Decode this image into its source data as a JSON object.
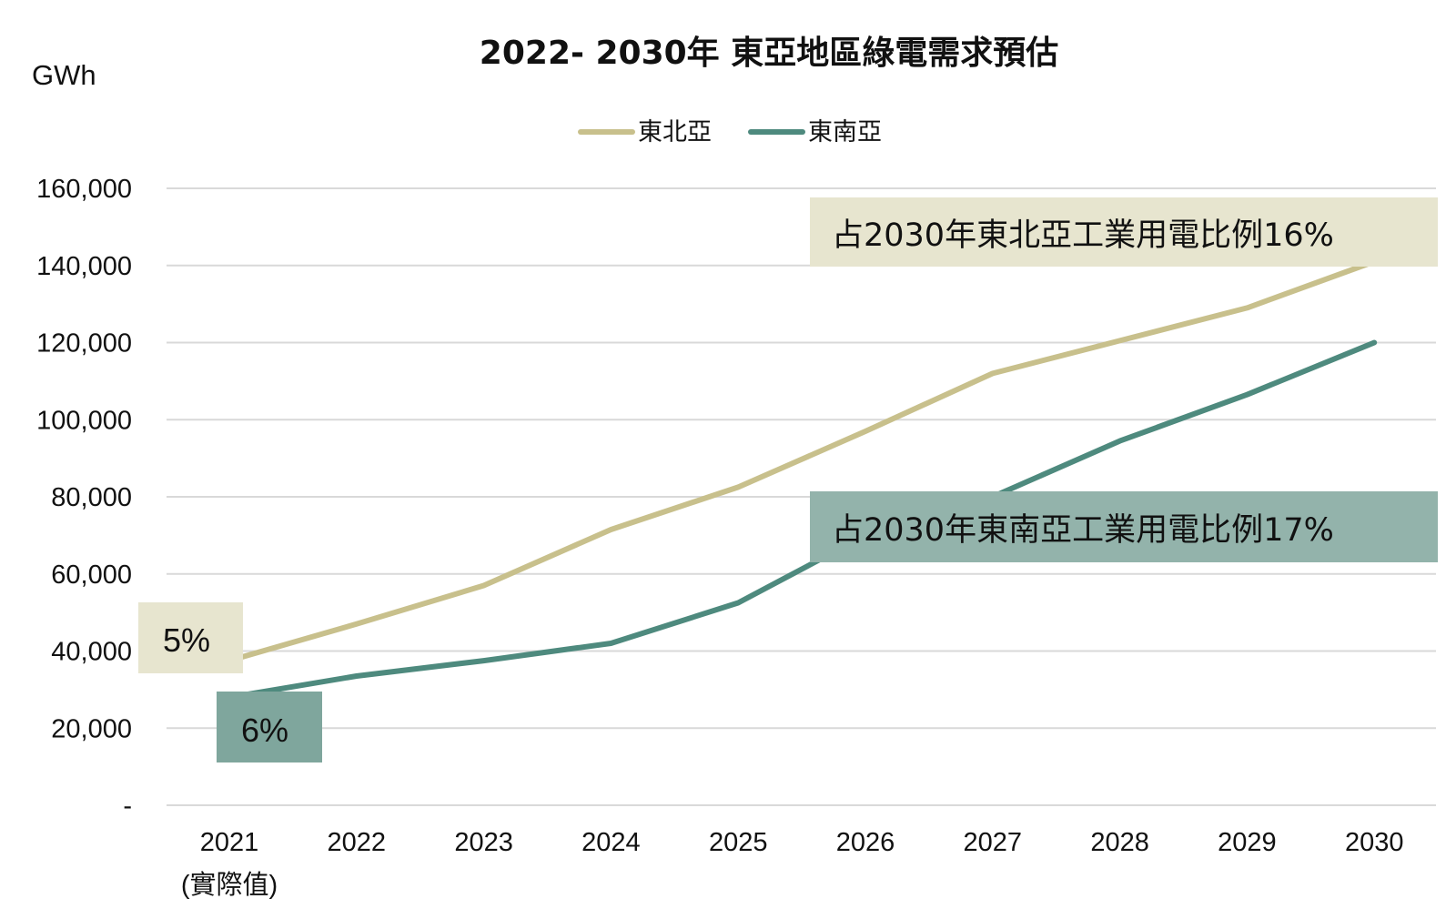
{
  "chart_data": {
    "type": "line",
    "title": "2022- 2030年 東亞地區綠電需求預估",
    "ylabel": "GWh",
    "xlabel": "",
    "categories": [
      "2021",
      "2022",
      "2023",
      "2024",
      "2025",
      "2026",
      "2027",
      "2028",
      "2029",
      "2030"
    ],
    "category_sublabels": [
      "(實際值)",
      "",
      "",
      "",
      "",
      "",
      "",
      "",
      "",
      ""
    ],
    "y_ticks": [
      "-",
      "20,000",
      "40,000",
      "60,000",
      "80,000",
      "100,000",
      "120,000",
      "140,000",
      "160,000"
    ],
    "ylim": [
      0,
      160000
    ],
    "grid": "horizontal",
    "legend_position": "top-center",
    "series": [
      {
        "name": "東北亞",
        "color": "#c8c08c",
        "values": [
          37500,
          47000,
          57000,
          71500,
          82500,
          97000,
          112000,
          120500,
          129000,
          141000
        ]
      },
      {
        "name": "東南亞",
        "color": "#4e8a7e",
        "values": [
          28000,
          33500,
          37500,
          42000,
          52500,
          70000,
          80000,
          94500,
          106500,
          120000
        ]
      }
    ],
    "annotations": [
      {
        "text": "占2030年東北亞工業用電比例16%",
        "fill": "#e7e5cf",
        "series": "東北亞"
      },
      {
        "text": "占2030年東南亞工業用電比例17%",
        "fill": "#93b3ab",
        "series": "東南亞"
      },
      {
        "text": "5%",
        "fill": "#e7e5cf",
        "series": "東北亞"
      },
      {
        "text": "6%",
        "fill": "#7fa69d",
        "series": "東南亞"
      }
    ]
  }
}
